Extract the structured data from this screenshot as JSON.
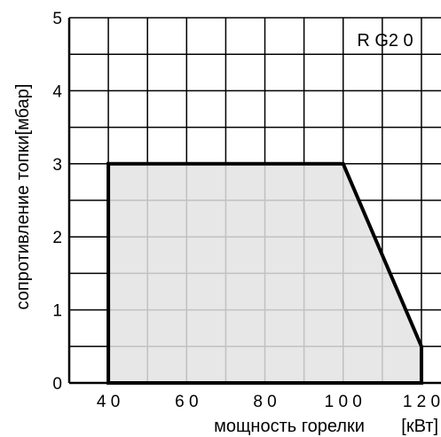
{
  "chart_data": {
    "type": "area",
    "title": "",
    "chart_id": "R G2 0",
    "xlabel": "мощность горелки",
    "xunit": "[кВт]",
    "ylabel": "сопротивление топки[мбар]",
    "xlim": [
      30,
      125
    ],
    "ylim": [
      0,
      5
    ],
    "x_ticks": [
      40,
      60,
      80,
      100,
      120
    ],
    "x_tick_labels": [
      "4 0",
      "6 0",
      "8 0",
      "1 0 0",
      "1 2 0"
    ],
    "y_ticks": [
      0,
      1,
      2,
      3,
      4,
      5
    ],
    "y_tick_labels": [
      "0",
      "1",
      "2",
      "3",
      "4",
      "5"
    ],
    "grid": true,
    "region": {
      "name": "working-field",
      "points": [
        [
          40,
          0
        ],
        [
          40,
          3
        ],
        [
          100,
          3
        ],
        [
          120,
          0.5
        ],
        [
          120,
          0
        ]
      ],
      "fill": "#e3e3e3",
      "stroke": "#000000"
    }
  }
}
